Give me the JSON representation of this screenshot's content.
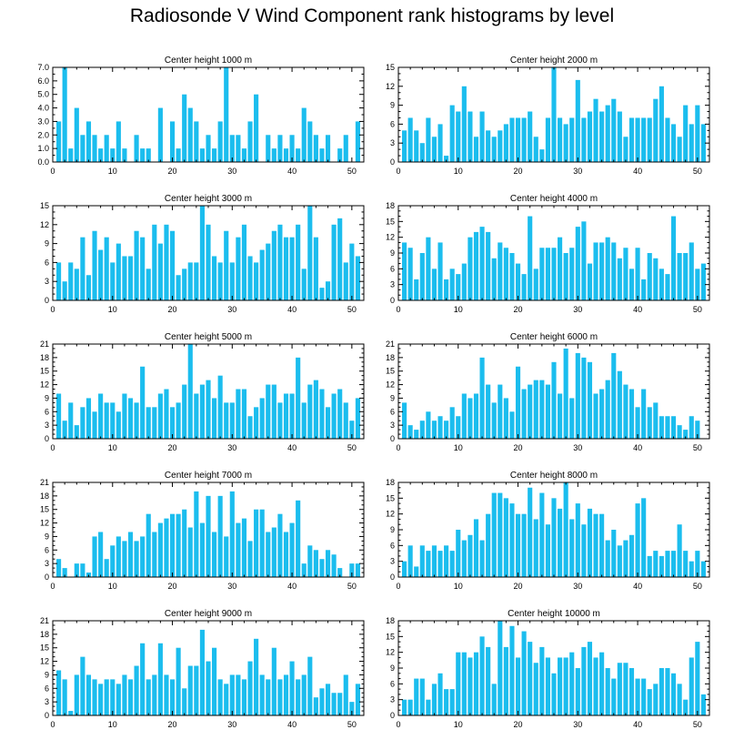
{
  "title": "Radiosonde V Wind Component rank histograms by level",
  "colors": {
    "bar": "#1bbdee",
    "axis": "#000000"
  },
  "chart_data": [
    {
      "type": "bar",
      "title": "Center height 1000 m",
      "xlim": [
        0,
        52
      ],
      "ylim": [
        0,
        7
      ],
      "xticks": [
        0,
        10,
        20,
        30,
        40,
        50
      ],
      "yticks": [
        0,
        1,
        2,
        3,
        4,
        5,
        6,
        7
      ],
      "ytick_labels": [
        "0.0",
        "1.0",
        "2.0",
        "3.0",
        "4.0",
        "5.0",
        "6.0",
        "7.0"
      ],
      "x": [
        1,
        2,
        3,
        4,
        5,
        6,
        7,
        8,
        9,
        10,
        11,
        12,
        13,
        14,
        15,
        16,
        17,
        18,
        19,
        20,
        21,
        22,
        23,
        24,
        25,
        26,
        27,
        28,
        29,
        30,
        31,
        32,
        33,
        34,
        35,
        36,
        37,
        38,
        39,
        40,
        41,
        42,
        43,
        44,
        45,
        46,
        47,
        48,
        49,
        50,
        51
      ],
      "values": [
        3,
        7,
        1,
        4,
        2,
        3,
        2,
        1,
        2,
        1,
        3,
        1,
        0,
        2,
        1,
        1,
        0,
        4,
        0,
        3,
        1,
        5,
        4,
        3,
        1,
        2,
        1,
        3,
        7,
        2,
        2,
        1,
        3,
        5,
        0,
        2,
        1,
        2,
        1,
        2,
        1,
        4,
        3,
        2,
        1,
        2,
        0,
        1,
        2,
        0,
        3
      ]
    },
    {
      "type": "bar",
      "title": "Center height 2000 m",
      "xlim": [
        0,
        52
      ],
      "ylim": [
        0,
        15
      ],
      "xticks": [
        0,
        10,
        20,
        30,
        40,
        50
      ],
      "yticks": [
        0,
        3,
        6,
        9,
        12,
        15
      ],
      "ytick_labels": [
        "0",
        "3",
        "6",
        "9",
        "12",
        "15"
      ],
      "x": [
        1,
        2,
        3,
        4,
        5,
        6,
        7,
        8,
        9,
        10,
        11,
        12,
        13,
        14,
        15,
        16,
        17,
        18,
        19,
        20,
        21,
        22,
        23,
        24,
        25,
        26,
        27,
        28,
        29,
        30,
        31,
        32,
        33,
        34,
        35,
        36,
        37,
        38,
        39,
        40,
        41,
        42,
        43,
        44,
        45,
        46,
        47,
        48,
        49,
        50,
        51
      ],
      "values": [
        5,
        7,
        5,
        3,
        7,
        4,
        6,
        1,
        9,
        8,
        12,
        8,
        4,
        8,
        5,
        4,
        5,
        6,
        7,
        7,
        7,
        8,
        4,
        2,
        7,
        15,
        7,
        6,
        7,
        13,
        7,
        8,
        10,
        8,
        9,
        10,
        8,
        4,
        7,
        7,
        7,
        7,
        10,
        12,
        7,
        6,
        4,
        9,
        6,
        9,
        6
      ]
    },
    {
      "type": "bar",
      "title": "Center height 3000 m",
      "xlim": [
        0,
        52
      ],
      "ylim": [
        0,
        15
      ],
      "xticks": [
        0,
        10,
        20,
        30,
        40,
        50
      ],
      "yticks": [
        0,
        3,
        6,
        9,
        12,
        15
      ],
      "ytick_labels": [
        "0",
        "3",
        "6",
        "9",
        "12",
        "15"
      ],
      "x": [
        1,
        2,
        3,
        4,
        5,
        6,
        7,
        8,
        9,
        10,
        11,
        12,
        13,
        14,
        15,
        16,
        17,
        18,
        19,
        20,
        21,
        22,
        23,
        24,
        25,
        26,
        27,
        28,
        29,
        30,
        31,
        32,
        33,
        34,
        35,
        36,
        37,
        38,
        39,
        40,
        41,
        42,
        43,
        44,
        45,
        46,
        47,
        48,
        49,
        50,
        51
      ],
      "values": [
        6,
        3,
        6,
        5,
        10,
        4,
        11,
        8,
        10,
        6,
        9,
        7,
        7,
        11,
        10,
        5,
        12,
        9,
        12,
        11,
        4,
        5,
        6,
        6,
        15,
        12,
        7,
        6,
        11,
        6,
        10,
        12,
        7,
        6,
        8,
        9,
        11,
        12,
        10,
        10,
        12,
        5,
        15,
        10,
        2,
        3,
        12,
        13,
        6,
        9,
        7
      ]
    },
    {
      "type": "bar",
      "title": "Center height 4000 m",
      "xlim": [
        0,
        52
      ],
      "ylim": [
        0,
        18
      ],
      "xticks": [
        0,
        10,
        20,
        30,
        40,
        50
      ],
      "yticks": [
        0,
        3,
        6,
        9,
        12,
        15,
        18
      ],
      "ytick_labels": [
        "0",
        "3",
        "6",
        "9",
        "12",
        "15",
        "18"
      ],
      "x": [
        1,
        2,
        3,
        4,
        5,
        6,
        7,
        8,
        9,
        10,
        11,
        12,
        13,
        14,
        15,
        16,
        17,
        18,
        19,
        20,
        21,
        22,
        23,
        24,
        25,
        26,
        27,
        28,
        29,
        30,
        31,
        32,
        33,
        34,
        35,
        36,
        37,
        38,
        39,
        40,
        41,
        42,
        43,
        44,
        45,
        46,
        47,
        48,
        49,
        50,
        51
      ],
      "values": [
        11,
        10,
        4,
        9,
        12,
        6,
        11,
        4,
        6,
        5,
        7,
        12,
        13,
        14,
        13,
        8,
        11,
        10,
        9,
        7,
        5,
        16,
        6,
        10,
        10,
        10,
        12,
        9,
        10,
        14,
        15,
        7,
        11,
        11,
        12,
        11,
        8,
        10,
        6,
        10,
        4,
        9,
        8,
        6,
        5,
        16,
        9,
        9,
        11,
        6,
        7
      ]
    },
    {
      "type": "bar",
      "title": "Center height 5000 m",
      "xlim": [
        0,
        52
      ],
      "ylim": [
        0,
        21
      ],
      "xticks": [
        0,
        10,
        20,
        30,
        40,
        50
      ],
      "yticks": [
        0,
        3,
        6,
        9,
        12,
        15,
        18,
        21
      ],
      "ytick_labels": [
        "0",
        "3",
        "6",
        "9",
        "12",
        "15",
        "18",
        "21"
      ],
      "x": [
        1,
        2,
        3,
        4,
        5,
        6,
        7,
        8,
        9,
        10,
        11,
        12,
        13,
        14,
        15,
        16,
        17,
        18,
        19,
        20,
        21,
        22,
        23,
        24,
        25,
        26,
        27,
        28,
        29,
        30,
        31,
        32,
        33,
        34,
        35,
        36,
        37,
        38,
        39,
        40,
        41,
        42,
        43,
        44,
        45,
        46,
        47,
        48,
        49,
        50,
        51
      ],
      "values": [
        10,
        4,
        8,
        3,
        7,
        9,
        6,
        10,
        8,
        8,
        6,
        10,
        9,
        8,
        16,
        7,
        7,
        10,
        11,
        7,
        8,
        12,
        21,
        10,
        12,
        13,
        9,
        14,
        8,
        8,
        11,
        11,
        5,
        7,
        9,
        12,
        12,
        8,
        10,
        10,
        18,
        8,
        12,
        13,
        11,
        7,
        10,
        11,
        8,
        4,
        9
      ]
    },
    {
      "type": "bar",
      "title": "Center height 6000 m",
      "xlim": [
        0,
        52
      ],
      "ylim": [
        0,
        21
      ],
      "xticks": [
        0,
        10,
        20,
        30,
        40,
        50
      ],
      "yticks": [
        0,
        3,
        6,
        9,
        12,
        15,
        18,
        21
      ],
      "ytick_labels": [
        "0",
        "3",
        "6",
        "9",
        "12",
        "15",
        "18",
        "21"
      ],
      "x": [
        1,
        2,
        3,
        4,
        5,
        6,
        7,
        8,
        9,
        10,
        11,
        12,
        13,
        14,
        15,
        16,
        17,
        18,
        19,
        20,
        21,
        22,
        23,
        24,
        25,
        26,
        27,
        28,
        29,
        30,
        31,
        32,
        33,
        34,
        35,
        36,
        37,
        38,
        39,
        40,
        41,
        42,
        43,
        44,
        45,
        46,
        47,
        48,
        49,
        50,
        51
      ],
      "values": [
        8,
        3,
        2,
        4,
        6,
        4,
        5,
        4,
        7,
        5,
        10,
        9,
        10,
        18,
        12,
        8,
        12,
        9,
        6,
        16,
        11,
        12,
        13,
        13,
        12,
        17,
        10,
        20,
        9,
        19,
        18,
        17,
        10,
        11,
        13,
        19,
        15,
        12,
        11,
        7,
        11,
        7,
        8,
        5,
        5,
        5,
        3,
        2,
        5,
        4,
        0
      ]
    },
    {
      "type": "bar",
      "title": "Center height 7000 m",
      "xlim": [
        0,
        52
      ],
      "ylim": [
        0,
        21
      ],
      "xticks": [
        0,
        10,
        20,
        30,
        40,
        50
      ],
      "yticks": [
        0,
        3,
        6,
        9,
        12,
        15,
        18,
        21
      ],
      "ytick_labels": [
        "0",
        "3",
        "6",
        "9",
        "12",
        "15",
        "18",
        "21"
      ],
      "x": [
        1,
        2,
        3,
        4,
        5,
        6,
        7,
        8,
        9,
        10,
        11,
        12,
        13,
        14,
        15,
        16,
        17,
        18,
        19,
        20,
        21,
        22,
        23,
        24,
        25,
        26,
        27,
        28,
        29,
        30,
        31,
        32,
        33,
        34,
        35,
        36,
        37,
        38,
        39,
        40,
        41,
        42,
        43,
        44,
        45,
        46,
        47,
        48,
        49,
        50,
        51
      ],
      "values": [
        4,
        2,
        0,
        3,
        3,
        1,
        9,
        10,
        4,
        7,
        9,
        8,
        10,
        8,
        9,
        14,
        10,
        12,
        13,
        14,
        14,
        15,
        11,
        19,
        12,
        18,
        10,
        18,
        9,
        19,
        12,
        13,
        8,
        15,
        15,
        10,
        11,
        14,
        10,
        12,
        17,
        3,
        7,
        6,
        4,
        6,
        5,
        2,
        0,
        3,
        3
      ]
    },
    {
      "type": "bar",
      "title": "Center height 8000 m",
      "xlim": [
        0,
        52
      ],
      "ylim": [
        0,
        18
      ],
      "xticks": [
        0,
        10,
        20,
        30,
        40,
        50
      ],
      "yticks": [
        0,
        3,
        6,
        9,
        12,
        15,
        18
      ],
      "ytick_labels": [
        "0",
        "3",
        "6",
        "9",
        "12",
        "15",
        "18"
      ],
      "x": [
        1,
        2,
        3,
        4,
        5,
        6,
        7,
        8,
        9,
        10,
        11,
        12,
        13,
        14,
        15,
        16,
        17,
        18,
        19,
        20,
        21,
        22,
        23,
        24,
        25,
        26,
        27,
        28,
        29,
        30,
        31,
        32,
        33,
        34,
        35,
        36,
        37,
        38,
        39,
        40,
        41,
        42,
        43,
        44,
        45,
        46,
        47,
        48,
        49,
        50,
        51
      ],
      "values": [
        3,
        6,
        2,
        6,
        5,
        6,
        5,
        6,
        5,
        9,
        7,
        8,
        11,
        7,
        12,
        16,
        16,
        15,
        14,
        12,
        12,
        17,
        11,
        16,
        10,
        15,
        13,
        18,
        11,
        14,
        10,
        13,
        12,
        12,
        7,
        9,
        6,
        7,
        8,
        14,
        15,
        4,
        5,
        4,
        5,
        5,
        10,
        5,
        3,
        5,
        3
      ]
    },
    {
      "type": "bar",
      "title": "Center height 9000 m",
      "xlim": [
        0,
        52
      ],
      "ylim": [
        0,
        21
      ],
      "xticks": [
        0,
        10,
        20,
        30,
        40,
        50
      ],
      "yticks": [
        0,
        3,
        6,
        9,
        12,
        15,
        18,
        21
      ],
      "ytick_labels": [
        "0",
        "3",
        "6",
        "9",
        "12",
        "15",
        "18",
        "21"
      ],
      "x": [
        1,
        2,
        3,
        4,
        5,
        6,
        7,
        8,
        9,
        10,
        11,
        12,
        13,
        14,
        15,
        16,
        17,
        18,
        19,
        20,
        21,
        22,
        23,
        24,
        25,
        26,
        27,
        28,
        29,
        30,
        31,
        32,
        33,
        34,
        35,
        36,
        37,
        38,
        39,
        40,
        41,
        42,
        43,
        44,
        45,
        46,
        47,
        48,
        49,
        50,
        51
      ],
      "values": [
        10,
        8,
        1,
        9,
        13,
        9,
        8,
        7,
        8,
        8,
        7,
        9,
        8,
        11,
        16,
        8,
        9,
        16,
        9,
        8,
        15,
        6,
        11,
        11,
        19,
        12,
        15,
        8,
        7,
        9,
        9,
        8,
        12,
        17,
        9,
        8,
        15,
        8,
        9,
        12,
        8,
        9,
        13,
        4,
        6,
        7,
        5,
        5,
        9,
        3,
        7
      ]
    },
    {
      "type": "bar",
      "title": "Center height 10000 m",
      "xlim": [
        0,
        52
      ],
      "ylim": [
        0,
        18
      ],
      "xticks": [
        0,
        10,
        20,
        30,
        40,
        50
      ],
      "yticks": [
        0,
        3,
        6,
        9,
        12,
        15,
        18
      ],
      "ytick_labels": [
        "0",
        "3",
        "6",
        "9",
        "12",
        "15",
        "18"
      ],
      "x": [
        1,
        2,
        3,
        4,
        5,
        6,
        7,
        8,
        9,
        10,
        11,
        12,
        13,
        14,
        15,
        16,
        17,
        18,
        19,
        20,
        21,
        22,
        23,
        24,
        25,
        26,
        27,
        28,
        29,
        30,
        31,
        32,
        33,
        34,
        35,
        36,
        37,
        38,
        39,
        40,
        41,
        42,
        43,
        44,
        45,
        46,
        47,
        48,
        49,
        50,
        51
      ],
      "values": [
        3,
        3,
        7,
        7,
        3,
        6,
        8,
        5,
        5,
        12,
        12,
        11,
        12,
        15,
        13,
        6,
        18,
        13,
        17,
        11,
        16,
        14,
        10,
        13,
        11,
        8,
        11,
        11,
        12,
        9,
        13,
        14,
        11,
        12,
        9,
        7,
        10,
        10,
        9,
        7,
        7,
        5,
        6,
        9,
        9,
        8,
        6,
        3,
        11,
        14,
        4
      ]
    }
  ]
}
